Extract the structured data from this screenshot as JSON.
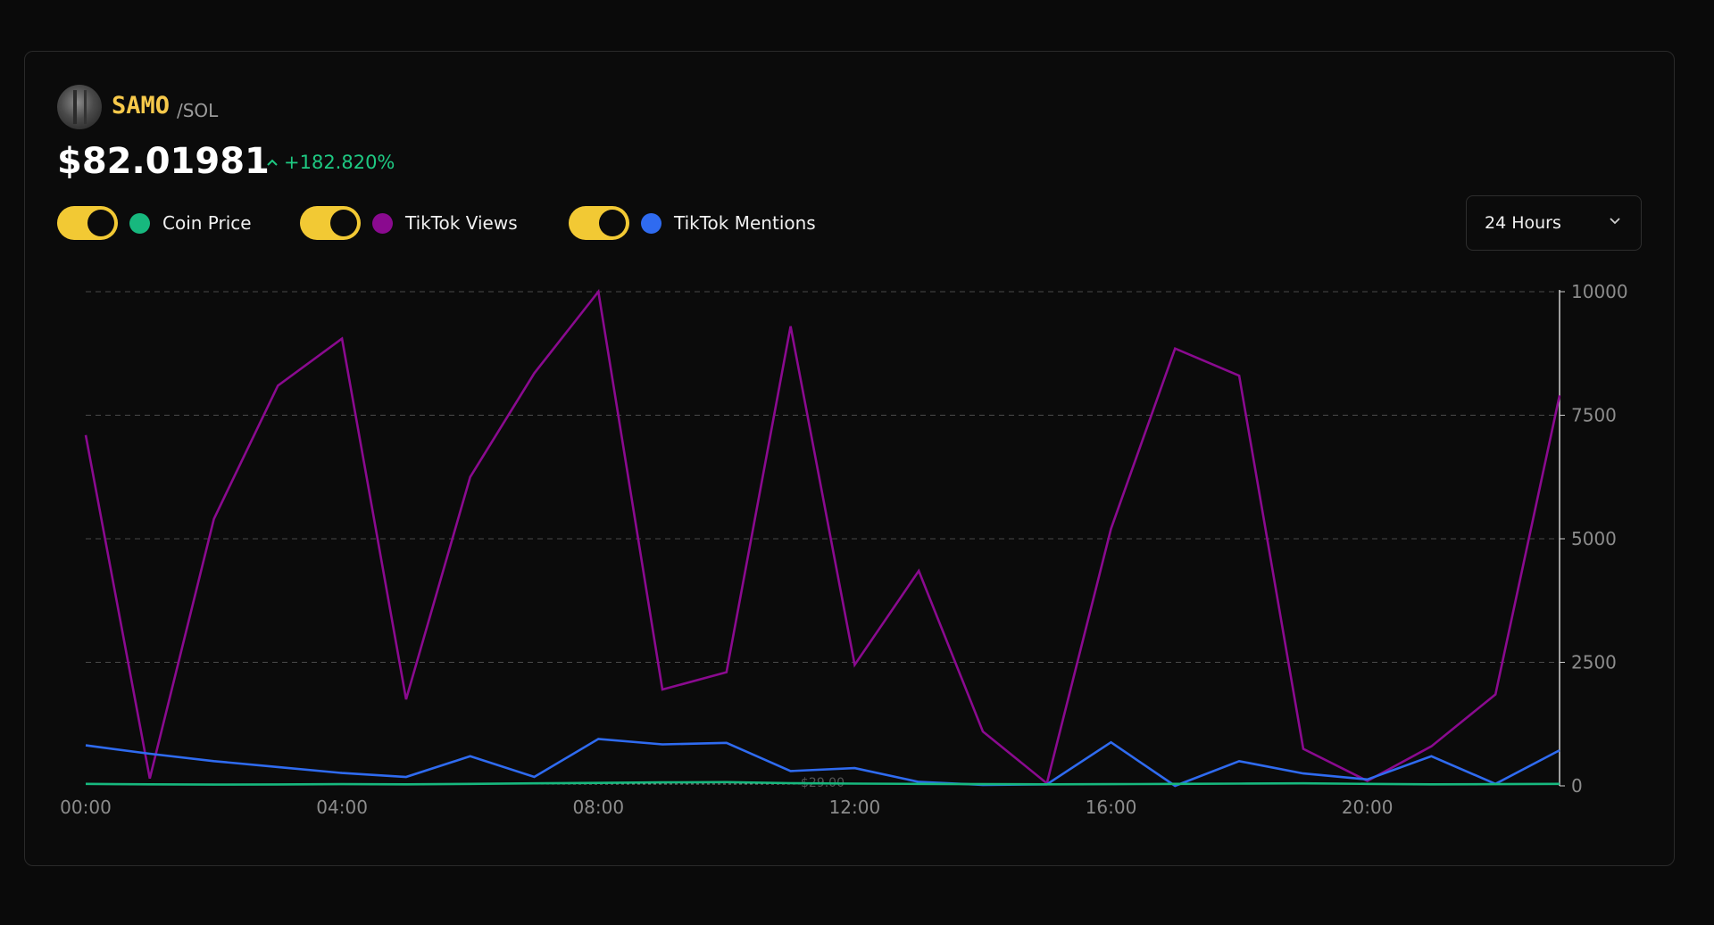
{
  "header": {
    "symbol": "SAMO",
    "pair": "/SOL",
    "price": "$82.01981",
    "change": "+182.820%",
    "avatar_icon": "samo-avatar-icon"
  },
  "legend": [
    {
      "label": "Coin Price",
      "color": "#17b87e",
      "enabled": true
    },
    {
      "label": "TikTok Views",
      "color": "#8a0a8f",
      "enabled": true
    },
    {
      "label": "TikTok Mentions",
      "color": "#2f6bf0",
      "enabled": true
    }
  ],
  "range_select": {
    "selected": "24 Hours"
  },
  "colors": {
    "accent": "#f2c934",
    "positive": "#1ec982"
  },
  "chart_data": {
    "type": "line",
    "x": [
      "00:00",
      "01:00",
      "02:00",
      "03:00",
      "04:00",
      "05:00",
      "06:00",
      "07:00",
      "08:00",
      "09:00",
      "10:00",
      "11:00",
      "12:00",
      "13:00",
      "14:00",
      "15:00",
      "16:00",
      "17:00",
      "18:00",
      "19:00",
      "20:00",
      "21:00",
      "22:00",
      "23:00"
    ],
    "x_ticks": [
      "00:00",
      "04:00",
      "08:00",
      "12:00",
      "16:00",
      "20:00"
    ],
    "y_ticks": [
      "10000",
      "7500",
      "5000",
      "2500",
      "0"
    ],
    "ylim": [
      0,
      10000
    ],
    "grid": true,
    "price_label": "$29.00",
    "series": [
      {
        "name": "TikTok Views",
        "color": "#8a0a8f",
        "values": [
          7100,
          150,
          5400,
          8100,
          9050,
          1750,
          6250,
          8350,
          10000,
          1950,
          2300,
          9300,
          2450,
          4350,
          1100,
          50,
          5200,
          8850,
          8300,
          750,
          100,
          800,
          1850,
          7900
        ]
      },
      {
        "name": "TikTok Mentions",
        "color": "#2f6bf0",
        "values": [
          820,
          650,
          500,
          380,
          260,
          180,
          600,
          180,
          950,
          840,
          870,
          300,
          360,
          80,
          20,
          30,
          880,
          0,
          500,
          250,
          130,
          600,
          40,
          720
        ]
      },
      {
        "name": "Coin Price",
        "color": "#17b87e",
        "values": [
          40,
          30,
          25,
          28,
          35,
          30,
          40,
          50,
          60,
          70,
          75,
          55,
          45,
          40,
          35,
          30,
          35,
          40,
          45,
          50,
          40,
          30,
          35,
          40
        ]
      }
    ]
  }
}
